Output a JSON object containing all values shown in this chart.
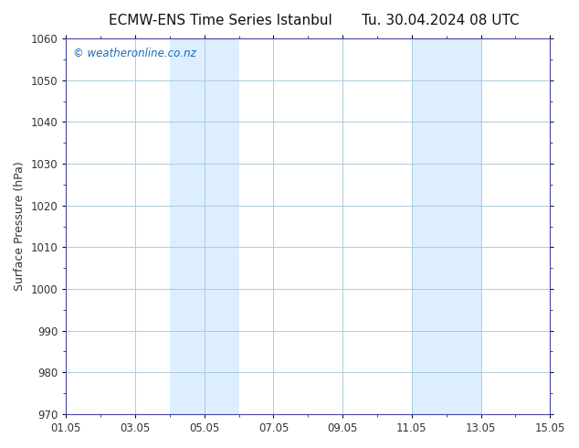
{
  "title": "ECMW-ENS Time Series Istanbul",
  "title2": "Tu. 30.04.2024 08 UTC",
  "ylabel": "Surface Pressure (hPa)",
  "ylim": [
    970,
    1060
  ],
  "yticks": [
    970,
    980,
    990,
    1000,
    1010,
    1020,
    1030,
    1040,
    1050,
    1060
  ],
  "xtick_labels": [
    "01.05",
    "03.05",
    "05.05",
    "07.05",
    "09.05",
    "11.05",
    "13.05",
    "15.05"
  ],
  "xtick_positions": [
    0,
    2,
    4,
    6,
    8,
    10,
    12,
    14
  ],
  "xlim": [
    0,
    14
  ],
  "shaded_bands": [
    {
      "x_start": 3,
      "x_end": 5,
      "color": "#ddeeff"
    },
    {
      "x_start": 10,
      "x_end": 12,
      "color": "#ddeeff"
    }
  ],
  "watermark_text": "© weatheronline.co.nz",
  "watermark_color": "#1a6ab0",
  "background_color": "#ffffff",
  "plot_bg_color": "#ffffff",
  "grid_color": "#aaccdd",
  "spine_color": "#4444aa",
  "title_fontsize": 11,
  "axis_label_fontsize": 9,
  "tick_fontsize": 8.5
}
